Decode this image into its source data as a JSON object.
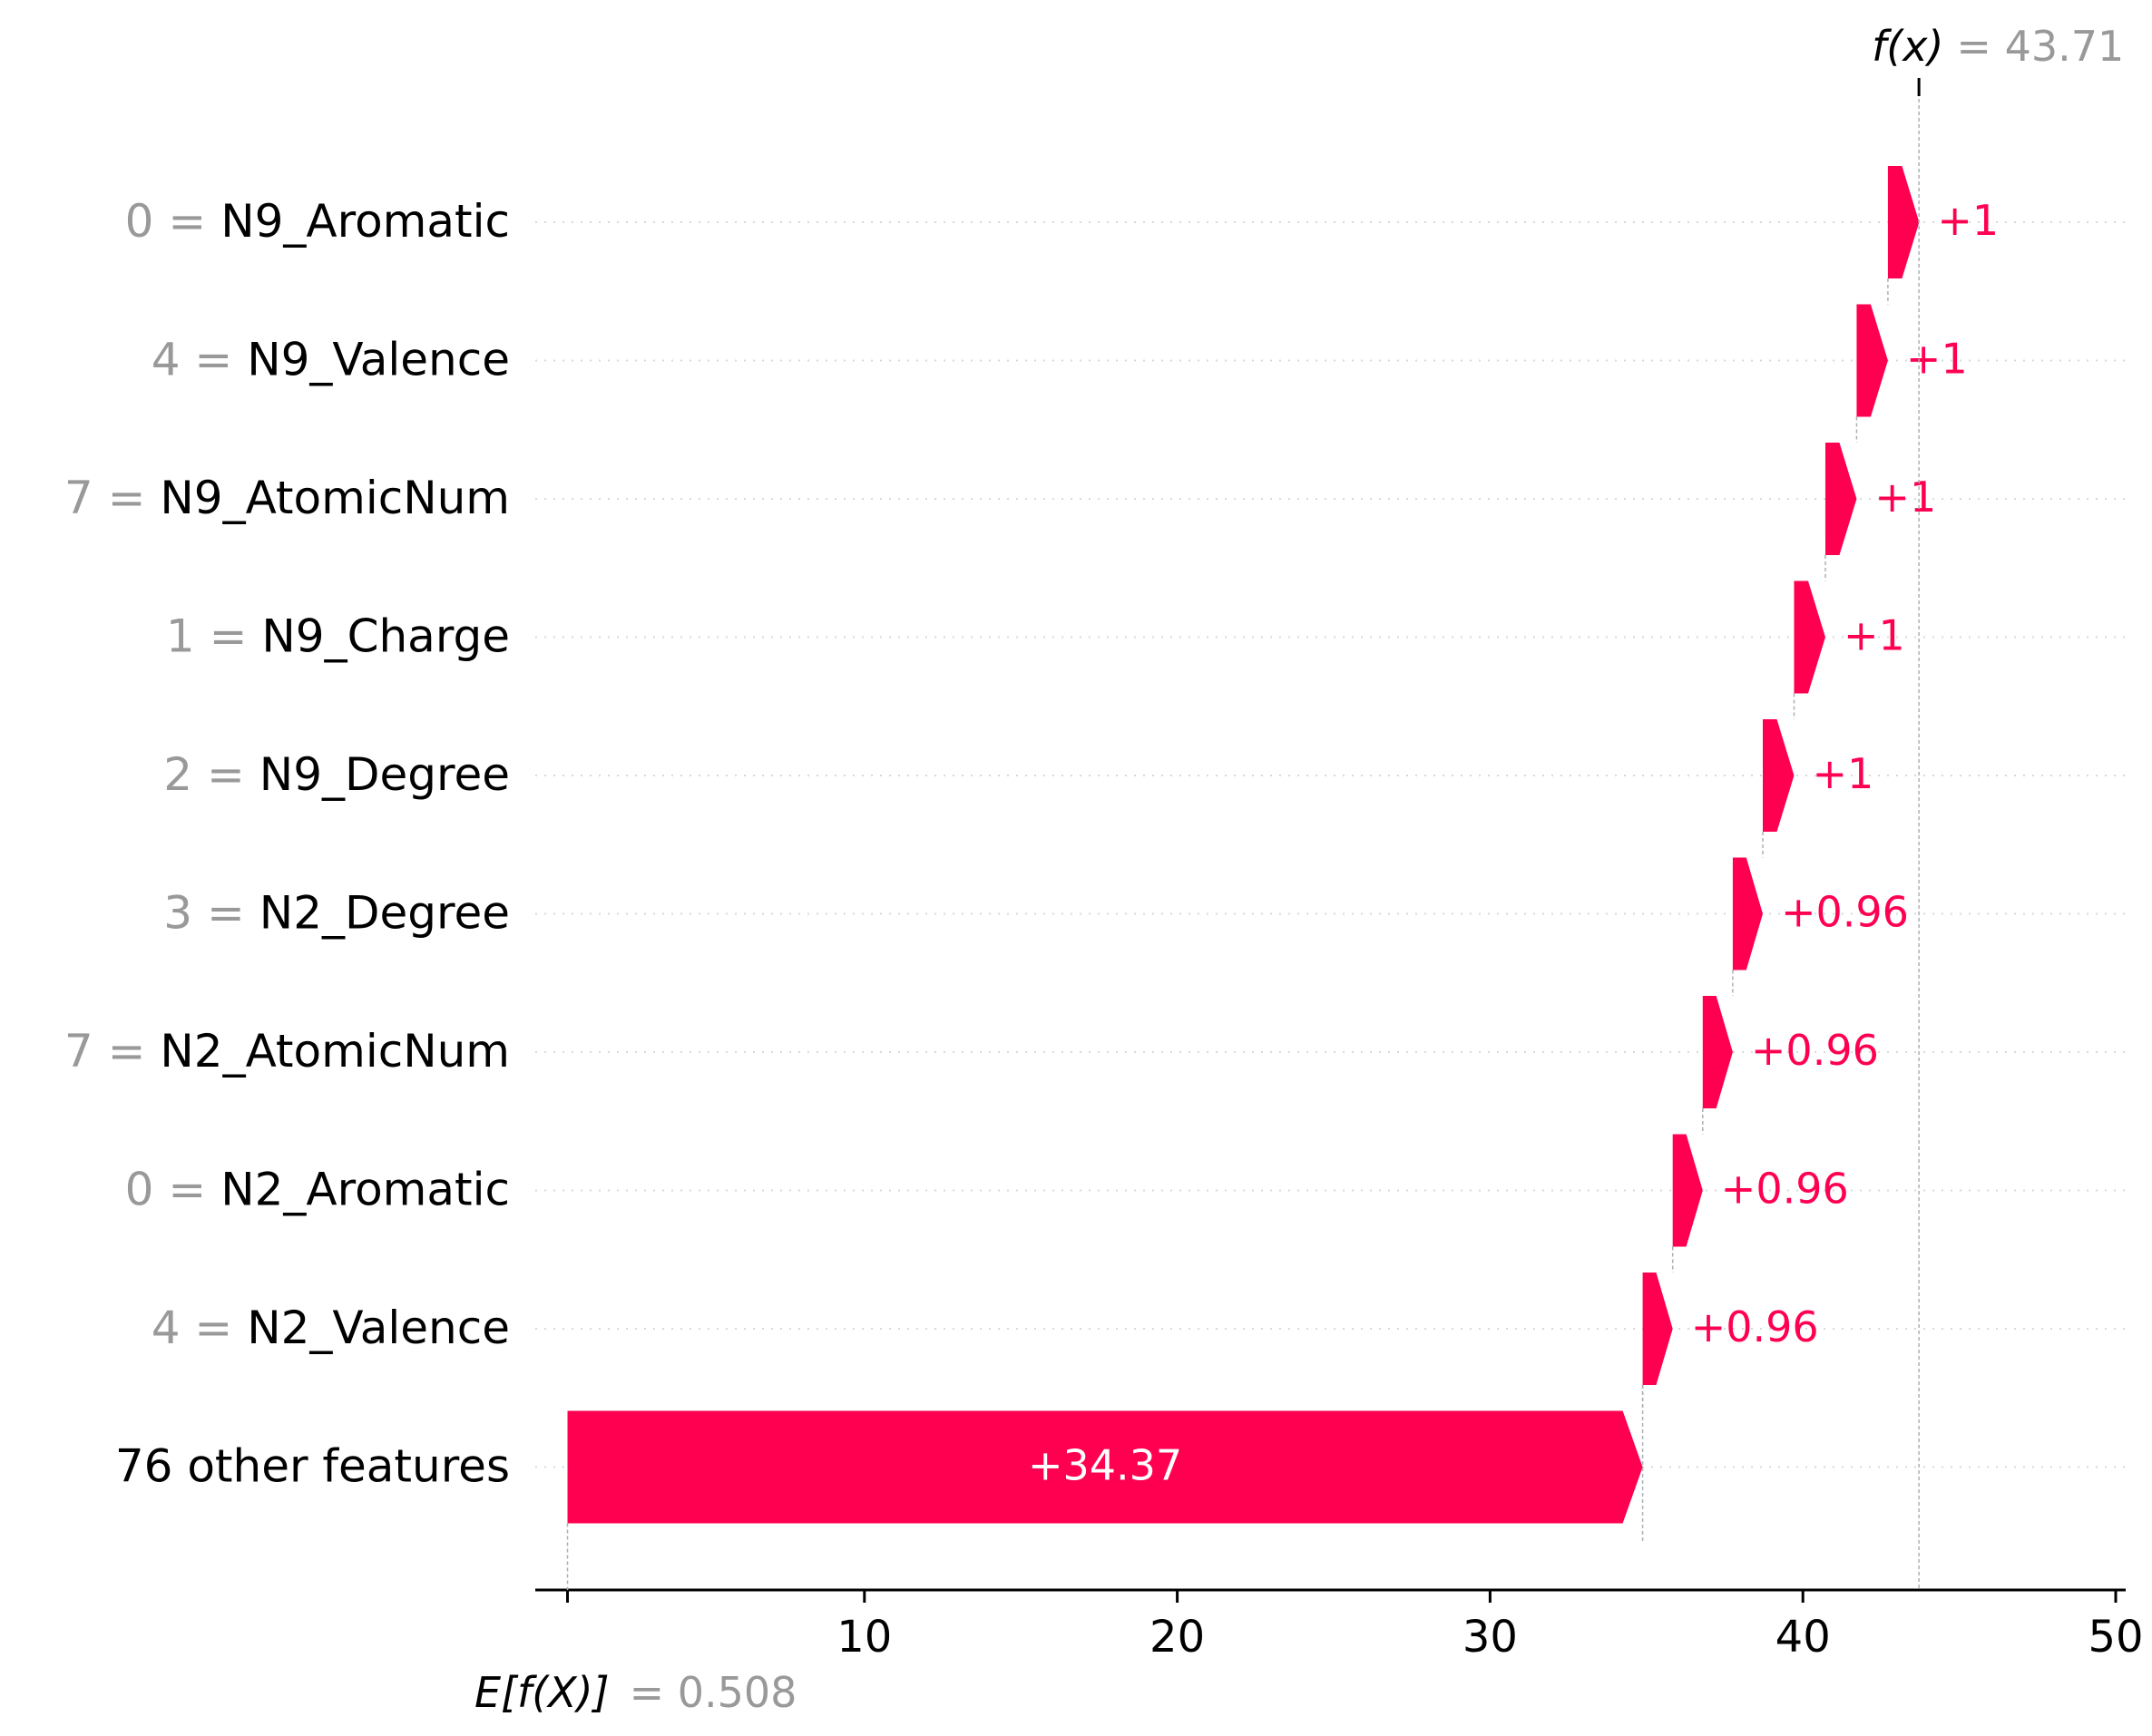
{
  "chart_data": {
    "type": "waterfall",
    "base_value": 0.508,
    "output_value": 43.71,
    "base_label": "E[f(X)]",
    "base_value_text": "= 0.508",
    "output_label": "f(x)",
    "output_value_text": "= 43.71",
    "xlim": [
      0,
      50
    ],
    "x_ticks": [
      10,
      20,
      30,
      40,
      50
    ],
    "x_tick_labels": [
      "10",
      "20",
      "30",
      "40",
      "50"
    ],
    "positive_color": "#ff0051",
    "negative_color": "#008bfb",
    "features": [
      {
        "value": "0",
        "eq": "=",
        "name": "N9_Aromatic",
        "contribution": 1.0,
        "label": "+1"
      },
      {
        "value": "4",
        "eq": "=",
        "name": "N9_Valence",
        "contribution": 1.0,
        "label": "+1"
      },
      {
        "value": "7",
        "eq": "=",
        "name": "N9_AtomicNum",
        "contribution": 1.0,
        "label": "+1"
      },
      {
        "value": "1",
        "eq": "=",
        "name": "N9_Charge",
        "contribution": 1.0,
        "label": "+1"
      },
      {
        "value": "2",
        "eq": "=",
        "name": "N9_Degree",
        "contribution": 1.0,
        "label": "+1"
      },
      {
        "value": "3",
        "eq": "=",
        "name": "N2_Degree",
        "contribution": 0.96,
        "label": "+0.96"
      },
      {
        "value": "7",
        "eq": "=",
        "name": "N2_AtomicNum",
        "contribution": 0.96,
        "label": "+0.96"
      },
      {
        "value": "0",
        "eq": "=",
        "name": "N2_Aromatic",
        "contribution": 0.96,
        "label": "+0.96"
      },
      {
        "value": "4",
        "eq": "=",
        "name": "N2_Valence",
        "contribution": 0.96,
        "label": "+0.96"
      },
      {
        "value": "",
        "eq": "",
        "name": "76 other features",
        "contribution": 34.37,
        "label": "+34.37"
      }
    ]
  }
}
